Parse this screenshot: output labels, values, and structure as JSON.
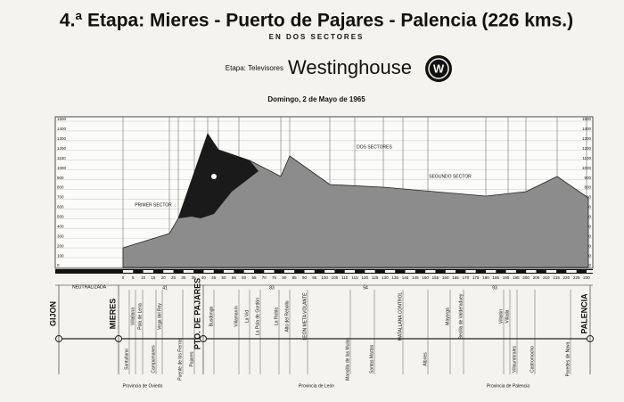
{
  "header": {
    "title": "4.ª Etapa: Mieres - Puerto de Pajares - Palencia (226 kms.)",
    "subtitle": "EN DOS SECTORES",
    "sponsor_prefix": "Etapa: Televisores",
    "sponsor": "Westinghouse",
    "logo": "W",
    "date": "Domingo, 2 de Mayo de 1965"
  },
  "profile": {
    "labels": [
      "DOS SECTORES",
      "SEGUNDO SECTOR",
      "PRIMER SECTOR"
    ],
    "altitudes": [
      "1500",
      "1400",
      "1300",
      "1200",
      "1100",
      "1000",
      "900",
      "800",
      "700",
      "600",
      "500",
      "400",
      "300",
      "200",
      "100",
      "0"
    ],
    "km": [
      "0",
      "5",
      "10",
      "15",
      "20",
      "25",
      "30",
      "35",
      "40",
      "45",
      "50",
      "55",
      "60",
      "65",
      "70",
      "75",
      "80",
      "85",
      "90",
      "95",
      "100",
      "105",
      "110",
      "115",
      "120",
      "125",
      "130",
      "135",
      "140",
      "145",
      "150",
      "155",
      "160",
      "165",
      "170",
      "175",
      "180",
      "185",
      "190",
      "195",
      "200",
      "205",
      "210",
      "215",
      "220",
      "225",
      "230"
    ],
    "neutral": "NEUTRALIZADA",
    "sector_km": [
      "41",
      "83",
      "94",
      "93"
    ]
  },
  "towns": {
    "major": [
      "GIJON",
      "MIERES",
      "PTO. DE PAJARES",
      "PALENCIA"
    ],
    "minor": [
      "Santullano",
      "Villallana",
      "Pola de Lena",
      "Campomanes",
      "Vega del Rey",
      "Puente de los Fierros",
      "Pajares",
      "Busdongo",
      "Villamanín",
      "La Vid",
      "La Pola de Gordón",
      "La Robla",
      "Alto del Rebollo",
      "LEON META VOLANTE",
      "Mansilla de las Mulas",
      "Santas Martas",
      "MATALLANA CONTROL",
      "Albires",
      "Mayorga",
      "Becilla de Valderaduey",
      "Villalón",
      "Villada",
      "Villaumbrales",
      "Castromocho",
      "Paredes de Nava"
    ]
  },
  "provinces": [
    "Provincia de Oviedo",
    "Provincia de León",
    "Provincia de Palencia"
  ]
}
